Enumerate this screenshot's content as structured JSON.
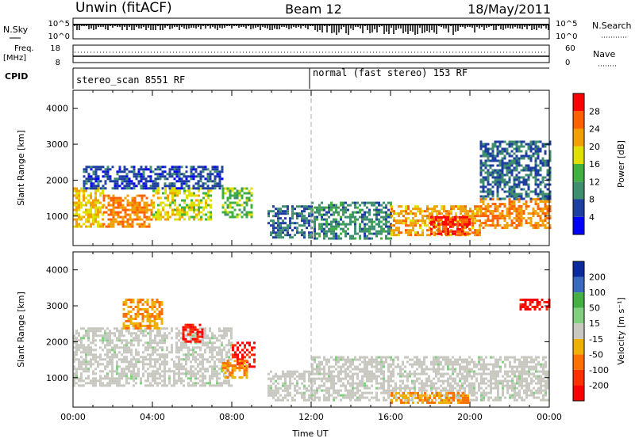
{
  "header": {
    "left": "Unwin (fitACF)",
    "center": "Beam 12",
    "right": "18/May/2011"
  },
  "top_panels": {
    "nsky_label": "N.Sky",
    "nsky_ticks": [
      "10^5",
      "10^0"
    ],
    "nsearch_label": "N.Search",
    "nsearch_ticks": [
      "10^5",
      "10^0"
    ],
    "freq_label_1": "Freq.",
    "freq_label_2": "[MHz]",
    "freq_ticks": [
      "18",
      "8"
    ],
    "nave_label": "Nave",
    "nave_ticks": [
      "60",
      "0"
    ],
    "cpid_label": "CPID",
    "cpid_segments": [
      {
        "text": "stereo_scan 8551 RF",
        "start_hour": 0
      },
      {
        "text": "normal (fast stereo) 153 RF",
        "start_hour": 12
      }
    ]
  },
  "colors": {
    "power": [
      "#0000ff",
      "#1f3fa0",
      "#3f8f6f",
      "#40b040",
      "#e0e000",
      "#f0a000",
      "#ff6000",
      "#ff0000"
    ],
    "velocity": [
      "#0a2a9e",
      "#3a6ac0",
      "#44b044",
      "#80d080",
      "#c8c8c0",
      "#f0b000",
      "#ff7000",
      "#ff3000",
      "#ff0000"
    ],
    "ground": "#c8c8c0"
  },
  "chart_data": [
    {
      "type": "heatmap",
      "title": "",
      "xlabel": "",
      "ylabel": "Slant Range [km]",
      "xlim": [
        0,
        24
      ],
      "ylim": [
        180,
        4500
      ],
      "y_ticks": [
        "1000",
        "2000",
        "3000",
        "4000"
      ],
      "colorbar": {
        "label": "Power [dB]",
        "ticks": [
          "4",
          "8",
          "12",
          "16",
          "20",
          "24",
          "28"
        ],
        "range": [
          0,
          32
        ]
      },
      "regions": [
        {
          "t": [
            0.0,
            1.5
          ],
          "r": [
            700,
            1800
          ],
          "value": 20
        },
        {
          "t": [
            1.5,
            4.0
          ],
          "r": [
            700,
            1600
          ],
          "value": 24
        },
        {
          "t": [
            4.0,
            7.0
          ],
          "r": [
            900,
            1800
          ],
          "value": 18
        },
        {
          "t": [
            0.5,
            7.5
          ],
          "r": [
            1800,
            2400
          ],
          "value": 6
        },
        {
          "t": [
            7.5,
            9.0
          ],
          "r": [
            1000,
            1800
          ],
          "value": 14
        },
        {
          "t": [
            9.8,
            12.0
          ],
          "r": [
            400,
            1300
          ],
          "value": 8
        },
        {
          "t": [
            12.0,
            16.0
          ],
          "r": [
            400,
            1400
          ],
          "value": 10
        },
        {
          "t": [
            16.0,
            20.5
          ],
          "r": [
            500,
            1300
          ],
          "value": 22
        },
        {
          "t": [
            18.0,
            20.0
          ],
          "r": [
            500,
            1000
          ],
          "value": 28
        },
        {
          "t": [
            20.5,
            24.0
          ],
          "r": [
            700,
            1500
          ],
          "value": 24
        },
        {
          "t": [
            20.5,
            24.0
          ],
          "r": [
            1500,
            3100
          ],
          "value": 8
        }
      ]
    },
    {
      "type": "heatmap",
      "title": "",
      "xlabel": "Time UT",
      "ylabel": "Slant Range [km]",
      "xlim": [
        0,
        24
      ],
      "ylim": [
        180,
        4500
      ],
      "x_ticks": [
        "00:00",
        "04:00",
        "08:00",
        "12:00",
        "16:00",
        "20:00",
        "00:00"
      ],
      "y_ticks": [
        "1000",
        "2000",
        "3000",
        "4000"
      ],
      "colorbar": {
        "label": "Velocity [m s⁻¹]",
        "ticks": [
          "200",
          "100",
          "50",
          "15",
          "-15",
          "-50",
          "-100",
          "-200"
        ]
      },
      "regions": [
        {
          "t": [
            0.0,
            8.0
          ],
          "r": [
            800,
            2400
          ],
          "value": 0
        },
        {
          "t": [
            2.5,
            4.5
          ],
          "r": [
            2400,
            3200
          ],
          "value": -60
        },
        {
          "t": [
            5.5,
            6.5
          ],
          "r": [
            2000,
            2500
          ],
          "value": -220
        },
        {
          "t": [
            8.0,
            9.2
          ],
          "r": [
            1300,
            2000
          ],
          "value": -220
        },
        {
          "t": [
            7.5,
            8.8
          ],
          "r": [
            1000,
            1500
          ],
          "value": -80
        },
        {
          "t": [
            9.8,
            12.0
          ],
          "r": [
            400,
            1200
          ],
          "value": 0
        },
        {
          "t": [
            12.0,
            24.0
          ],
          "r": [
            400,
            1600
          ],
          "value": 0
        },
        {
          "t": [
            16.0,
            20.0
          ],
          "r": [
            300,
            600
          ],
          "value": -60
        },
        {
          "t": [
            22.5,
            24.0
          ],
          "r": [
            2900,
            3200
          ],
          "value": -220
        }
      ]
    }
  ]
}
